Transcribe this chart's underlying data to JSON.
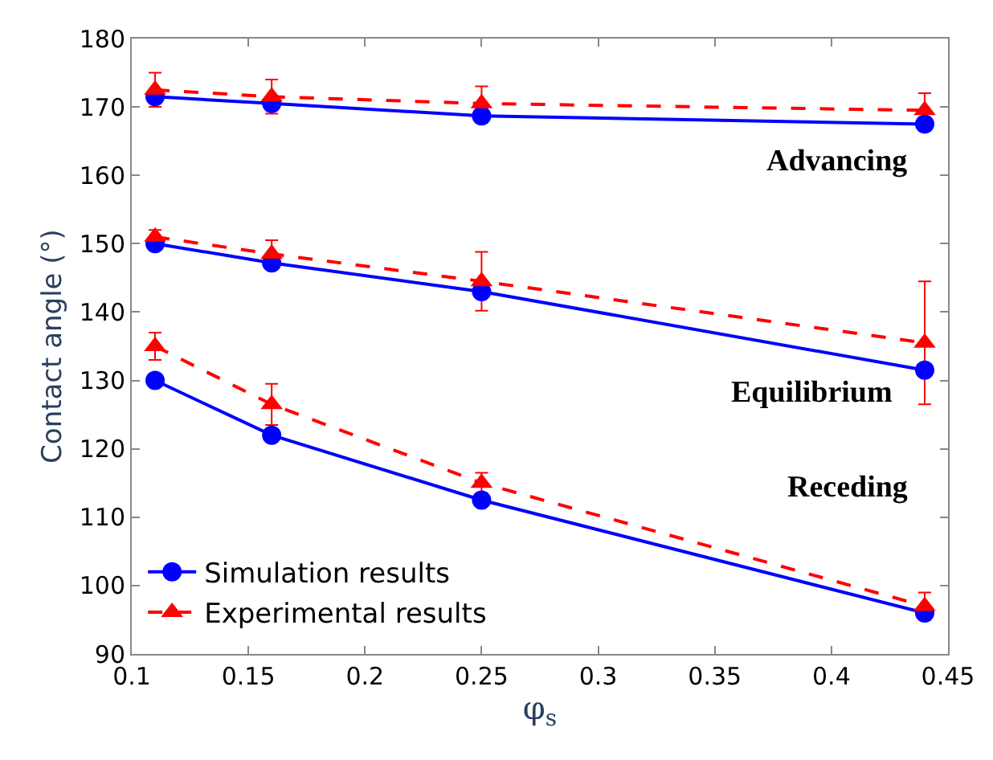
{
  "chart_data": {
    "type": "line",
    "xlabel": "φ$_{s}$",
    "ylabel": "Contact angle (°)",
    "x": [
      0.11,
      0.16,
      0.25,
      0.44
    ],
    "xlim": [
      0.1,
      0.45
    ],
    "xticks": [
      0.1,
      0.15,
      0.2,
      0.25,
      0.3,
      0.35,
      0.4,
      0.45
    ],
    "ylim": [
      90,
      180
    ],
    "yticks": [
      90,
      100,
      110,
      120,
      130,
      140,
      150,
      160,
      170,
      180
    ],
    "legend": "bottom left",
    "series": [
      {
        "name": "Simulation results",
        "color": "#0000ff",
        "marker": "circle",
        "line_style": "solid",
        "values": [
          171.5,
          170.5,
          168.7,
          167.5
        ],
        "errors": [
          1,
          1,
          1,
          1
        ]
      },
      {
        "name": "Experimental results",
        "color": "#ff0000",
        "marker": "triangle",
        "line_style": "dashed",
        "values": [
          172.5,
          171.5,
          170.5,
          169.5
        ],
        "errors": [
          2.5,
          2.5,
          2.5,
          2.5
        ]
      },
      {
        "color": "#0000ff",
        "marker": "circle",
        "line_style": "solid",
        "values": [
          150,
          147.2,
          143,
          131.5
        ]
      },
      {
        "color": "#ff0000",
        "marker": "triangle",
        "line_style": "dashed",
        "values": [
          151,
          148.5,
          144.5,
          135.5
        ],
        "errors": [
          1,
          2,
          4.3,
          9
        ]
      },
      {
        "color": "#0000ff",
        "marker": "circle",
        "line_style": "solid",
        "values": [
          130,
          122,
          112.5,
          96
        ]
      },
      {
        "color": "#ff0000",
        "marker": "triangle",
        "line_style": "dashed",
        "values": [
          135,
          126.5,
          115,
          97
        ],
        "errors": [
          2,
          3,
          1.5,
          2
        ]
      }
    ],
    "annotations": [
      "Advancing",
      "Equilibrium",
      "Receding"
    ]
  }
}
